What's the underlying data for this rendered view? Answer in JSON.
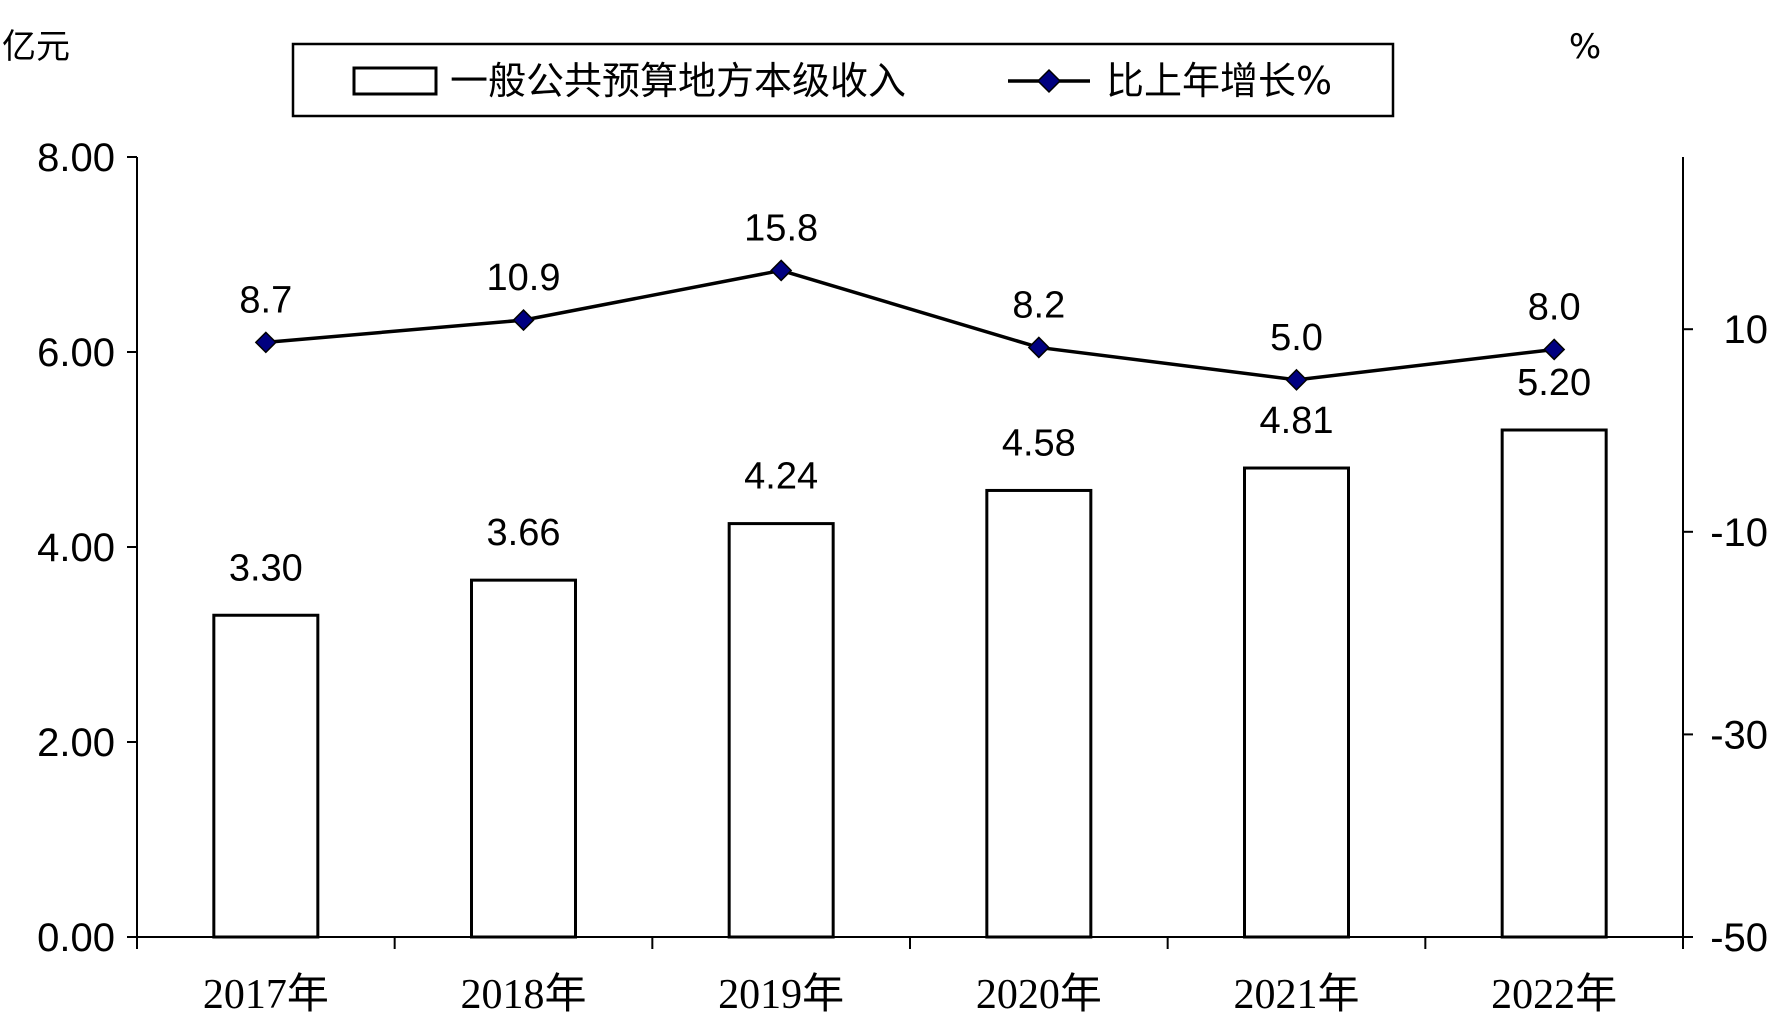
{
  "chart_data": {
    "type": "bar",
    "categories": [
      "2017年",
      "2018年",
      "2019年",
      "2020年",
      "2021年",
      "2022年"
    ],
    "series": [
      {
        "name": "一般公共预算地方本级收入",
        "type": "bar",
        "axis": "left",
        "values": [
          3.3,
          3.66,
          4.24,
          4.58,
          4.81,
          5.2
        ],
        "labels": [
          "3.30",
          "3.66",
          "4.24",
          "4.58",
          "4.81",
          "5.20"
        ],
        "color": "#ffffff",
        "border_color": "#000000"
      },
      {
        "name": "比上年增长%",
        "type": "line",
        "axis": "right",
        "values": [
          8.7,
          10.9,
          15.8,
          8.2,
          5.0,
          8.0
        ],
        "labels": [
          "8.7",
          "10.9",
          "15.8",
          "8.2",
          "5.0",
          "8.0"
        ],
        "color": "#000000",
        "marker": "diamond",
        "marker_color": "#000080"
      }
    ],
    "left_axis": {
      "unit": "亿元",
      "ylim": [
        0,
        8
      ],
      "ticks": [
        0,
        2,
        4,
        6,
        8
      ],
      "tick_labels": [
        "0.00",
        "2.00",
        "4.00",
        "6.00",
        "8.00"
      ]
    },
    "right_axis": {
      "unit": "%",
      "ylim": [
        -50,
        27
      ],
      "ticks": [
        -50,
        -30,
        -10,
        10
      ],
      "tick_labels": [
        "-50",
        "-30",
        "-10",
        "10"
      ]
    },
    "grid": false,
    "legend_position": "top"
  }
}
